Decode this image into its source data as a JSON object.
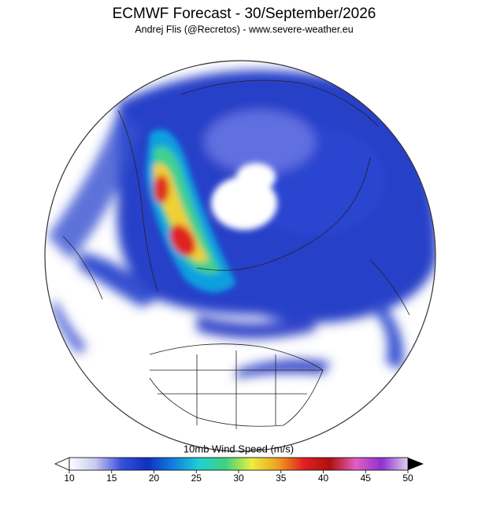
{
  "title": "ECMWF Forecast - 30/September/2026",
  "subtitle": "Andrej Flis (@Recretos) - www.severe-weather.eu",
  "colorbar": {
    "label": "10mb Wind Speed (m/s)",
    "min": 10,
    "max": 50,
    "ticks": [
      10,
      15,
      20,
      25,
      30,
      35,
      40,
      45,
      50
    ],
    "colors": [
      "#ffffff",
      "#c8c8f0",
      "#3a4fd8",
      "#1030c0",
      "#1080e0",
      "#20d0d0",
      "#40d080",
      "#e8f040",
      "#f0a020",
      "#e02020",
      "#b01010",
      "#e060c0",
      "#9030d0",
      "#e0d0f0"
    ]
  }
}
